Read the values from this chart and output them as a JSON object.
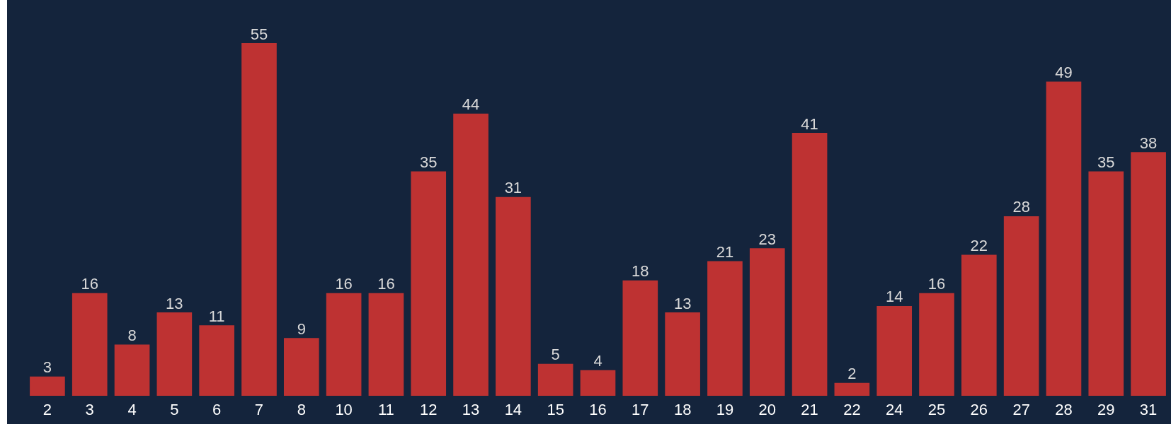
{
  "chart_data": {
    "type": "bar",
    "categories": [
      "2",
      "3",
      "4",
      "5",
      "6",
      "7",
      "8",
      "10",
      "11",
      "12",
      "13",
      "14",
      "15",
      "16",
      "17",
      "18",
      "19",
      "20",
      "21",
      "22",
      "24",
      "25",
      "26",
      "27",
      "28",
      "29",
      "31"
    ],
    "values": [
      3,
      16,
      8,
      13,
      11,
      55,
      9,
      16,
      16,
      35,
      44,
      31,
      5,
      4,
      18,
      13,
      21,
      23,
      41,
      2,
      14,
      16,
      22,
      28,
      49,
      35,
      38
    ],
    "color": "#be3232",
    "data_labels": true
  }
}
